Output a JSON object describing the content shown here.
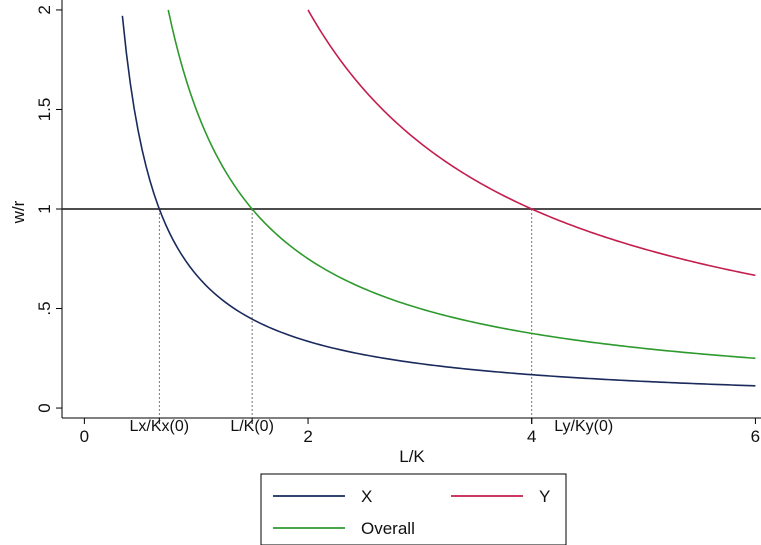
{
  "chart_data": {
    "type": "line",
    "xlabel": "L/K",
    "ylabel": "w/r",
    "xlim": [
      -0.2,
      6.05
    ],
    "ylim": [
      -0.05,
      2.05
    ],
    "x_ticks": [
      {
        "value": 0,
        "label": "0"
      },
      {
        "value": 2,
        "label": "2"
      },
      {
        "value": 4,
        "label": "4"
      },
      {
        "value": 6,
        "label": "6"
      }
    ],
    "y_ticks": [
      {
        "value": 0,
        "label": "0"
      },
      {
        "value": 0.5,
        "label": ".5"
      },
      {
        "value": 1,
        "label": "1"
      },
      {
        "value": 1.5,
        "label": "1.5"
      },
      {
        "value": 2,
        "label": "2"
      }
    ],
    "hline": {
      "y": 1,
      "color": "#333333"
    },
    "markers": [
      {
        "x": 0.67,
        "label": "Lx/Kx(0)"
      },
      {
        "x": 1.5,
        "label": "L/K(0)"
      },
      {
        "x": 4,
        "label": "Ly/Ky(0)"
      }
    ],
    "series": [
      {
        "name": "X",
        "color": "#1a2a5c",
        "x_start": 0.34,
        "x_end": 6,
        "x": [
          0.34,
          0.4,
          0.5,
          0.67,
          1,
          1.5,
          2,
          3,
          4,
          5,
          6
        ],
        "y": [
          1.97,
          1.675,
          1.34,
          1.0,
          0.67,
          0.447,
          0.335,
          0.223,
          0.1675,
          0.134,
          0.112
        ]
      },
      {
        "name": "Y",
        "color": "#c41e4e",
        "x_start": 2,
        "x_end": 6,
        "x": [
          2,
          2.5,
          3,
          3.5,
          4,
          4.5,
          5,
          5.5,
          6
        ],
        "y": [
          2.0,
          1.6,
          1.333,
          1.143,
          1.0,
          0.889,
          0.8,
          0.727,
          0.667
        ]
      },
      {
        "name": "Overall",
        "color": "#2e9a2e",
        "x_start": 0.75,
        "x_end": 6,
        "x": [
          0.75,
          1,
          1.5,
          2,
          3,
          4,
          5,
          6
        ],
        "y": [
          2.0,
          1.5,
          1.0,
          0.75,
          0.5,
          0.375,
          0.3,
          0.25
        ]
      }
    ],
    "legend": {
      "position": "bottom",
      "entries": [
        "X",
        "Y",
        "Overall"
      ]
    },
    "grid": false
  }
}
